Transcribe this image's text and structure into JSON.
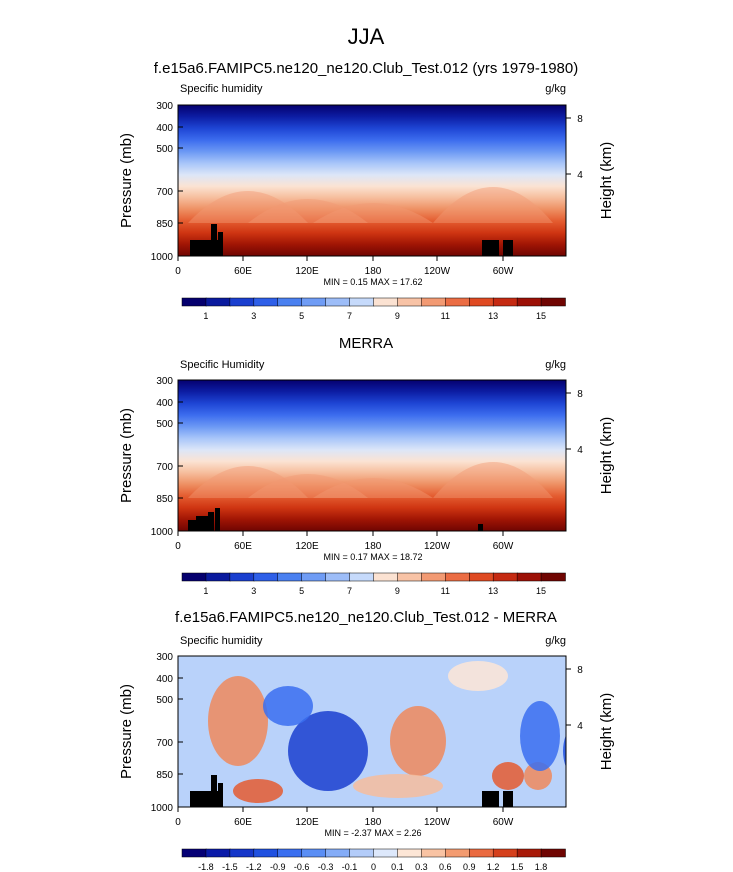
{
  "page_title": "JJA",
  "chart_data": [
    {
      "type": "heatmap",
      "title": "f.e15a6.FAMIPC5.ne120_ne120.Club_Test.012 (yrs 1979-1980)",
      "left_label": "Specific humidity",
      "right_label": "g/kg",
      "ylabel": "Pressure (mb)",
      "y2label": "Height (km)",
      "yticks": [
        300,
        400,
        500,
        700,
        850,
        1000
      ],
      "y2ticks": [
        8,
        4
      ],
      "xticks": [
        "0",
        "60E",
        "120E",
        "180",
        "120W",
        "60W"
      ],
      "stats": "MIN =  0.15  MAX =  17.62",
      "colorbar": {
        "levels": [
          "1",
          "3",
          "5",
          "7",
          "9",
          "11",
          "13",
          "15"
        ],
        "colors": [
          "#05006e",
          "#0a1a9e",
          "#1a3fcf",
          "#2e5fe8",
          "#4a80f0",
          "#6f9cf5",
          "#9dbdf8",
          "#c6dafb",
          "#fbe2d2",
          "#f8c3a6",
          "#f29a73",
          "#eb6d44",
          "#df4a22",
          "#c52a12",
          "#9c1006",
          "#700502"
        ]
      }
    },
    {
      "type": "heatmap",
      "title": "MERRA",
      "left_label": "Specific Humidity",
      "right_label": "g/kg",
      "ylabel": "Pressure (mb)",
      "y2label": "Height (km)",
      "yticks": [
        300,
        400,
        500,
        700,
        850,
        1000
      ],
      "y2ticks": [
        8,
        4
      ],
      "xticks": [
        "0",
        "60E",
        "120E",
        "180",
        "120W",
        "60W"
      ],
      "stats": "MIN =  0.17  MAX =  18.72",
      "colorbar": {
        "levels": [
          "1",
          "3",
          "5",
          "7",
          "9",
          "11",
          "13",
          "15"
        ],
        "colors": [
          "#05006e",
          "#0a1a9e",
          "#1a3fcf",
          "#2e5fe8",
          "#4a80f0",
          "#6f9cf5",
          "#9dbdf8",
          "#c6dafb",
          "#fbe2d2",
          "#f8c3a6",
          "#f29a73",
          "#eb6d44",
          "#df4a22",
          "#c52a12",
          "#9c1006",
          "#700502"
        ]
      }
    },
    {
      "type": "heatmap",
      "title": "f.e15a6.FAMIPC5.ne120_ne120.Club_Test.012 - MERRA",
      "left_label": "Specific humidity",
      "right_label": "g/kg",
      "ylabel": "Pressure (mb)",
      "y2label": "Height (km)",
      "yticks": [
        300,
        400,
        500,
        700,
        850,
        1000
      ],
      "y2ticks": [
        8,
        4
      ],
      "xticks": [
        "0",
        "60E",
        "120E",
        "180",
        "120W",
        "60W"
      ],
      "stats": "MIN = -2.37  MAX =  2.26",
      "colorbar": {
        "levels": [
          "-1.8",
          "-1.5",
          "-1.2",
          "-0.9",
          "-0.6",
          "-0.3",
          "-0.1",
          "0",
          "0.1",
          "0.3",
          "0.6",
          "0.9",
          "1.2",
          "1.5",
          "1.8"
        ],
        "colors": [
          "#050075",
          "#0a1aa8",
          "#1536c9",
          "#1f50e0",
          "#3a6ff0",
          "#5a8ef5",
          "#84acf7",
          "#b3ccf9",
          "#dde8fb",
          "#fde6d6",
          "#f9c3a3",
          "#f39b70",
          "#ea6a40",
          "#d5401c",
          "#a81a08",
          "#700502"
        ]
      }
    }
  ]
}
